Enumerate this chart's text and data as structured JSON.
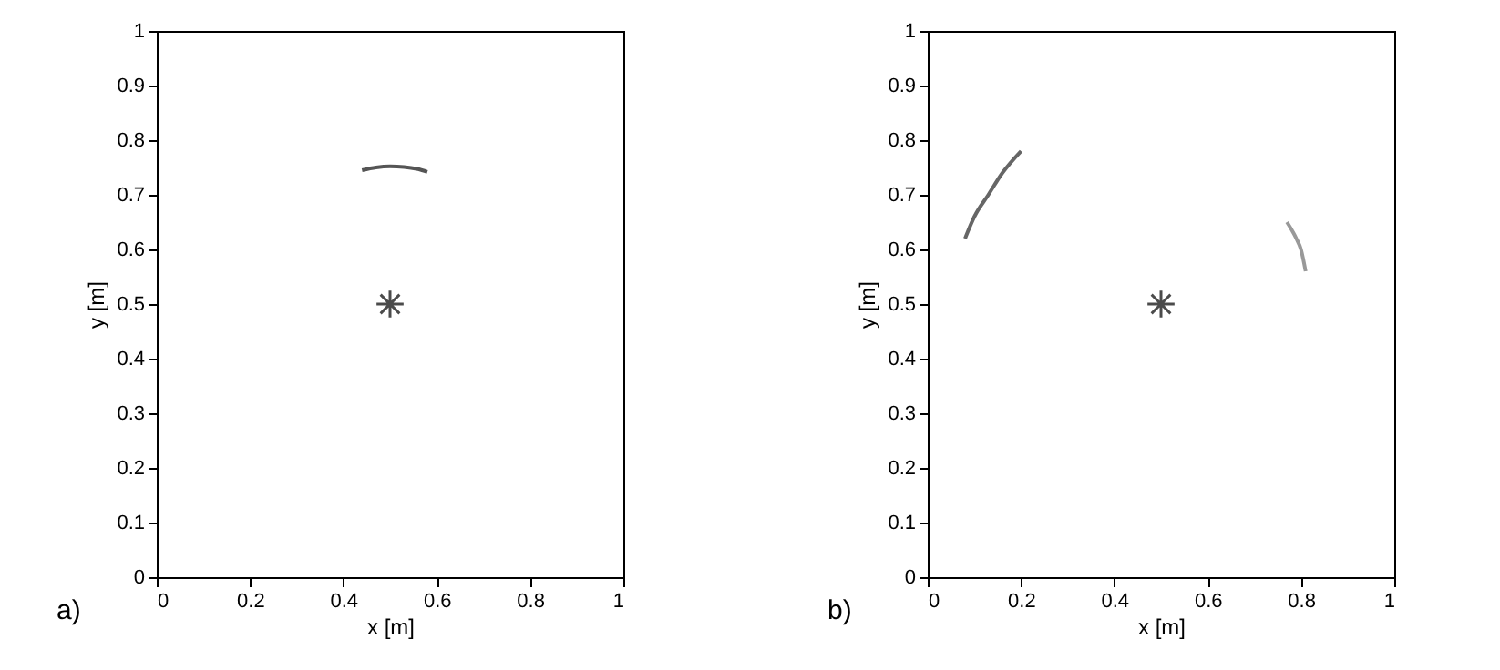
{
  "chart_data": [
    {
      "type": "scatter",
      "xlabel": "x [m]",
      "ylabel": "y [m]",
      "xlim": [
        0,
        1
      ],
      "ylim": [
        0,
        1
      ],
      "xticks": [
        0,
        0.2,
        0.4,
        0.6,
        0.8,
        1
      ],
      "yticks": [
        0,
        0.1,
        0.2,
        0.3,
        0.4,
        0.5,
        0.6,
        0.7,
        0.8,
        0.9,
        1
      ],
      "grid": false,
      "annotations": [
        "a)"
      ],
      "series": [
        {
          "marker": "cross",
          "color": "#000000",
          "x": [
            0.5
          ],
          "values": [
            0.5
          ]
        },
        {
          "type": "line",
          "color": "#555555",
          "x": [
            0.44,
            0.47,
            0.5,
            0.53,
            0.56,
            0.58
          ],
          "values": [
            0.745,
            0.75,
            0.752,
            0.751,
            0.747,
            0.742
          ]
        }
      ]
    },
    {
      "type": "scatter",
      "xlabel": "x [m]",
      "ylabel": "y [m]",
      "xlim": [
        0,
        1
      ],
      "ylim": [
        0,
        1
      ],
      "xticks": [
        0,
        0.2,
        0.4,
        0.6,
        0.8,
        1
      ],
      "yticks": [
        0,
        0.1,
        0.2,
        0.3,
        0.4,
        0.5,
        0.6,
        0.7,
        0.8,
        0.9,
        1
      ],
      "grid": false,
      "annotations": [
        "b)"
      ],
      "series": [
        {
          "marker": "cross",
          "color": "#000000",
          "x": [
            0.5
          ],
          "values": [
            0.5
          ]
        },
        {
          "type": "line",
          "color": "#666666",
          "x": [
            0.08,
            0.1,
            0.13,
            0.16,
            0.2
          ],
          "values": [
            0.62,
            0.66,
            0.7,
            0.74,
            0.78
          ]
        },
        {
          "type": "line",
          "color": "#999999",
          "x": [
            0.77,
            0.79,
            0.8,
            0.81
          ],
          "values": [
            0.65,
            0.62,
            0.6,
            0.56
          ]
        }
      ]
    }
  ]
}
